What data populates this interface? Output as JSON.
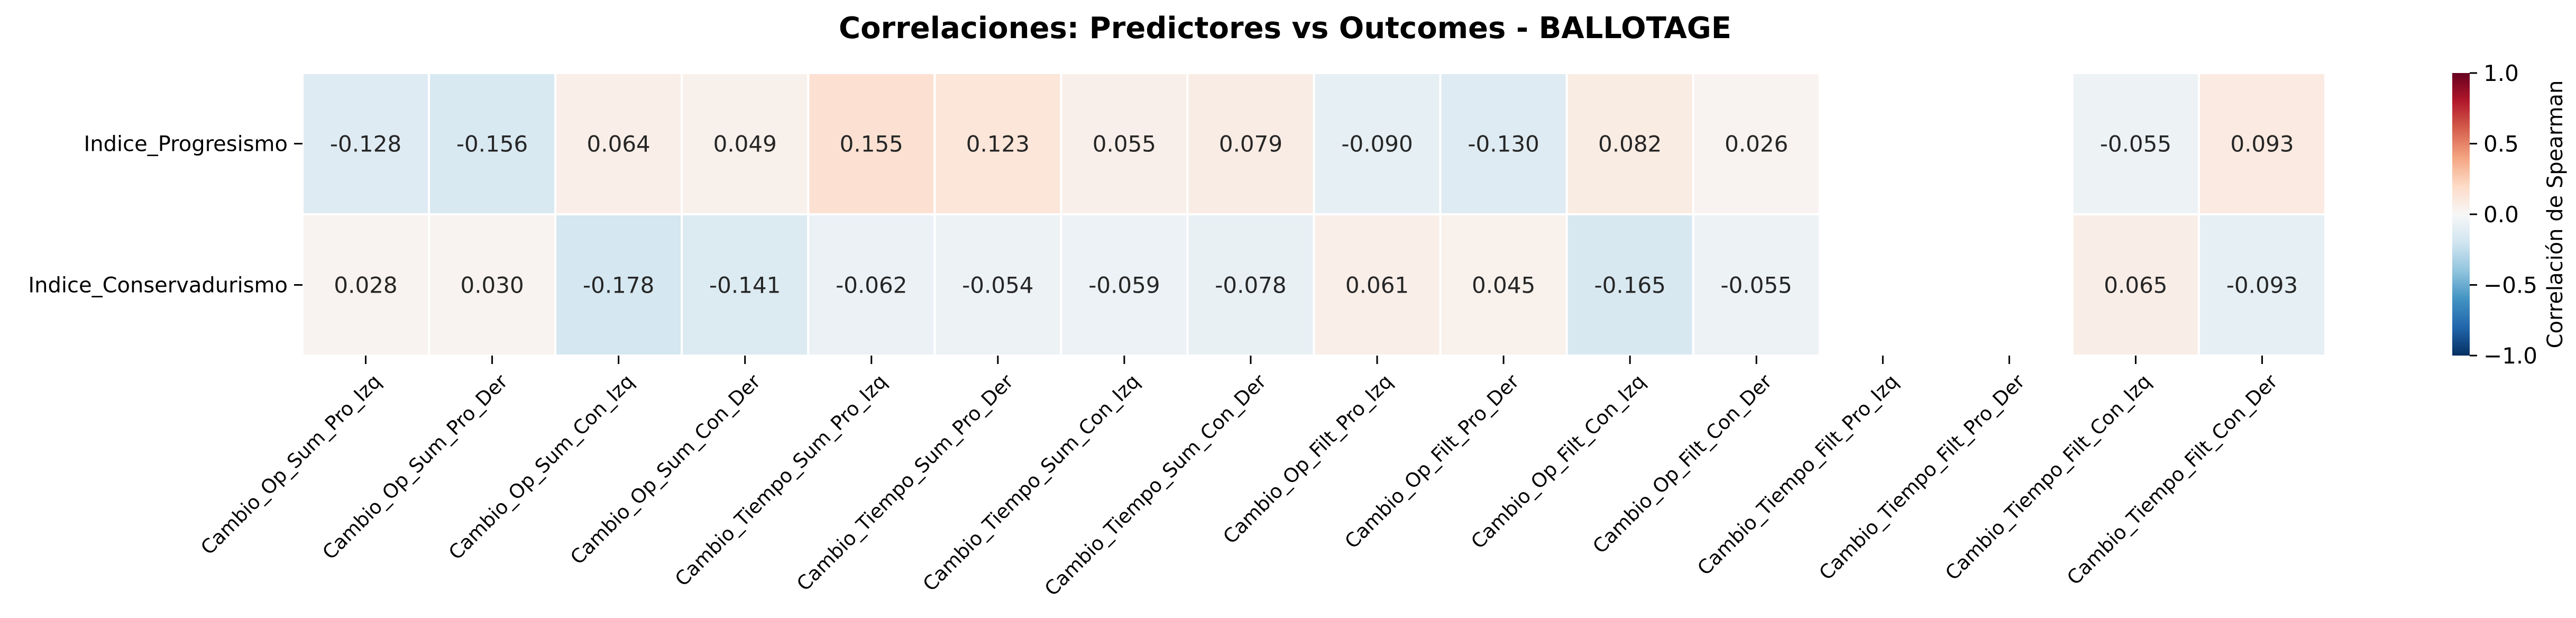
{
  "chart_data": {
    "type": "heatmap",
    "title": "Correlaciones: Predictores vs Outcomes - BALLOTAGE",
    "rows": [
      "Indice_Progresismo",
      "Indice_Conservadurismo"
    ],
    "columns": [
      "Cambio_Op_Sum_Pro_Izq",
      "Cambio_Op_Sum_Pro_Der",
      "Cambio_Op_Sum_Con_Izq",
      "Cambio_Op_Sum_Con_Der",
      "Cambio_Tiempo_Sum_Pro_Izq",
      "Cambio_Tiempo_Sum_Pro_Der",
      "Cambio_Tiempo_Sum_Con_Izq",
      "Cambio_Tiempo_Sum_Con_Der",
      "Cambio_Op_Filt_Pro_Izq",
      "Cambio_Op_Filt_Pro_Der",
      "Cambio_Op_Filt_Con_Izq",
      "Cambio_Op_Filt_Con_Der",
      "Cambio_Tiempo_Filt_Pro_Izq",
      "Cambio_Tiempo_Filt_Pro_Der",
      "Cambio_Tiempo_Filt_Con_Izq",
      "Cambio_Tiempo_Filt_Con_Der"
    ],
    "values": [
      [
        -0.128,
        -0.156,
        0.064,
        0.049,
        0.155,
        0.123,
        0.055,
        0.079,
        -0.09,
        -0.13,
        0.082,
        0.026,
        null,
        null,
        -0.055,
        0.093
      ],
      [
        0.028,
        0.03,
        -0.178,
        -0.141,
        -0.062,
        -0.054,
        -0.059,
        -0.078,
        0.061,
        0.045,
        -0.165,
        -0.055,
        null,
        null,
        0.065,
        -0.093
      ]
    ],
    "value_format": "3 decimals",
    "colormap": "RdBu_r",
    "vmin": -1.0,
    "vmax": 1.0,
    "colorbar": {
      "label": "Correlación de Spearman",
      "ticks": [
        1.0,
        0.5,
        0.0,
        -0.5,
        -1.0
      ],
      "tick_labels": [
        "1.0",
        "0.5",
        "0.0",
        "−0.5",
        "−1.0"
      ],
      "placement": "right"
    },
    "colors": {
      "low": "#053061",
      "mid": "#f7f7f7",
      "high": "#67001f",
      "cell_border": "#ffffff"
    }
  }
}
